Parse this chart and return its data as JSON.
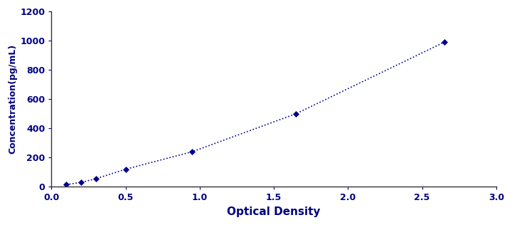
{
  "x_data": [
    0.1,
    0.2,
    0.3,
    0.5,
    0.95,
    1.65,
    2.65
  ],
  "y_data": [
    15,
    30,
    55,
    120,
    240,
    500,
    990
  ],
  "line_color": "#00008B",
  "marker_color": "#00008B",
  "marker_style": "D",
  "marker_size": 4,
  "line_style": ":",
  "line_width": 1.2,
  "xlabel": "Optical Density",
  "ylabel": "Concentration(pg/mL)",
  "xlim": [
    0,
    3
  ],
  "ylim": [
    0,
    1200
  ],
  "xticks": [
    0,
    0.5,
    1,
    1.5,
    2,
    2.5,
    3
  ],
  "yticks": [
    0,
    200,
    400,
    600,
    800,
    1000,
    1200
  ],
  "xlabel_fontsize": 11,
  "ylabel_fontsize": 9,
  "tick_fontsize": 9,
  "background_color": "#ffffff",
  "plot_bg_color": "#ffffff",
  "tick_color": "#000080",
  "label_color": "#000080"
}
